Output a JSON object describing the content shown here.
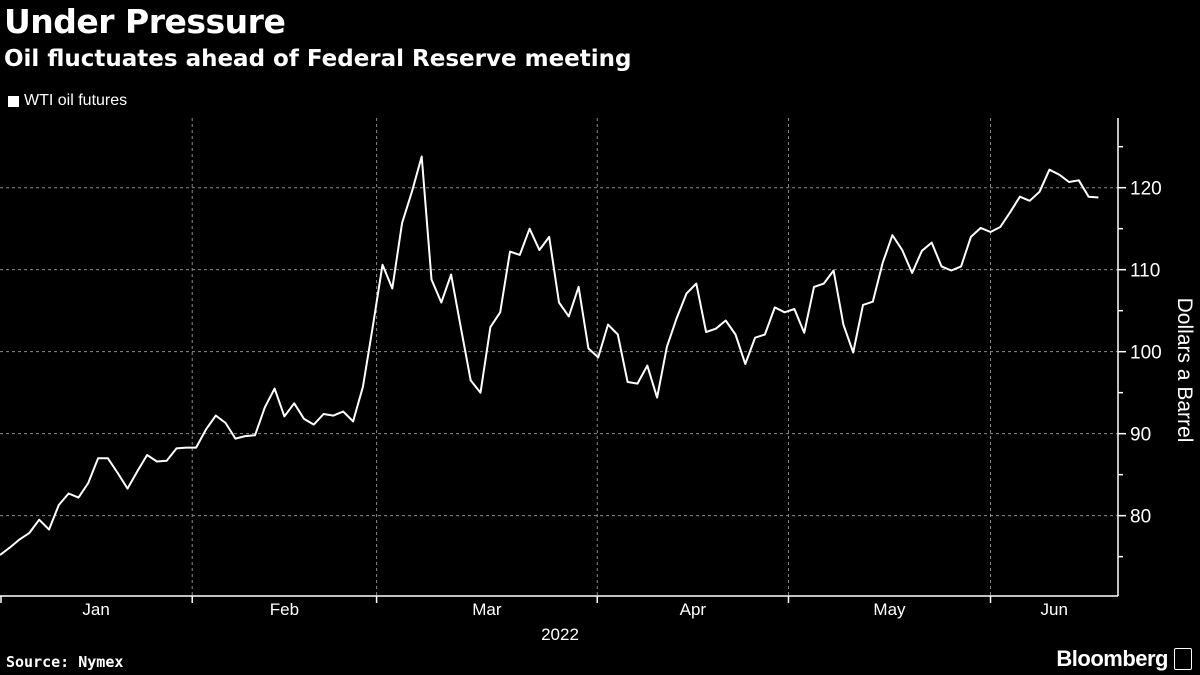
{
  "header": {
    "title": "Under Pressure",
    "subtitle": "Oil fluctuates ahead of Federal Reserve meeting"
  },
  "footer": {
    "source": "Source: Nymex",
    "brand": "Bloomberg"
  },
  "colors": {
    "background": "#000000",
    "line": "#ffffff",
    "grid": "#8a8a8a"
  },
  "chart_data": {
    "type": "line",
    "title": "Under Pressure",
    "subtitle": "Oil fluctuates ahead of Federal Reserve meeting",
    "legend": [
      "WTI oil futures"
    ],
    "legend_position": "top-left",
    "ylabel": "Dollars a Barrel",
    "xlabel": "2022",
    "ylim": [
      70.2,
      128.5
    ],
    "yticks": [
      80,
      90,
      100,
      110,
      120
    ],
    "ytick_labels": [
      "80",
      "90",
      "100",
      "110",
      "120"
    ],
    "y_minor_ticks": [
      75,
      85,
      95,
      105,
      115,
      125
    ],
    "x_index_range": [
      0,
      114
    ],
    "months": [
      {
        "label": "Jan",
        "start": 0,
        "end": 19.6
      },
      {
        "label": "Feb",
        "start": 19.6,
        "end": 38.4
      },
      {
        "label": "Mar",
        "start": 38.4,
        "end": 60.9
      },
      {
        "label": "Apr",
        "start": 60.9,
        "end": 80.4
      },
      {
        "label": "May",
        "start": 80.4,
        "end": 101.0
      },
      {
        "label": "Jun",
        "start": 101.0,
        "end": 114
      }
    ],
    "grid": true,
    "series": [
      {
        "name": "WTI oil futures",
        "values": [
          75.2,
          76.1,
          77.1,
          77.9,
          79.5,
          78.3,
          81.3,
          82.7,
          82.2,
          84.0,
          87.0,
          87.0,
          85.2,
          83.3,
          85.4,
          87.4,
          86.6,
          86.7,
          88.2,
          88.3,
          88.3,
          90.5,
          92.2,
          91.3,
          89.4,
          89.7,
          89.8,
          93.2,
          95.5,
          92.1,
          93.7,
          91.8,
          91.1,
          92.4,
          92.2,
          92.7,
          91.5,
          95.7,
          103.0,
          110.6,
          107.7,
          115.7,
          119.5,
          123.8,
          108.8,
          106.0,
          109.4,
          102.9,
          96.5,
          95.0,
          103.0,
          104.8,
          112.2,
          111.8,
          115.0,
          112.4,
          114.0,
          106.0,
          104.3,
          107.9,
          100.4,
          99.3,
          103.3,
          102.1,
          96.3,
          96.1,
          98.3,
          94.4,
          100.6,
          104.1,
          107.1,
          108.3,
          102.4,
          102.8,
          103.8,
          102.1,
          98.5,
          101.7,
          102.1,
          105.4,
          104.8,
          105.2,
          102.3,
          107.9,
          108.3,
          109.9,
          103.3,
          99.9,
          105.7,
          106.1,
          110.8,
          114.2,
          112.4,
          109.6,
          112.3,
          113.3,
          110.4,
          109.9,
          110.4,
          114.0,
          115.1,
          114.6,
          115.2,
          117.0,
          118.9,
          118.4,
          119.5,
          122.2,
          121.6,
          120.7,
          120.9,
          118.9,
          118.8
        ]
      }
    ]
  }
}
